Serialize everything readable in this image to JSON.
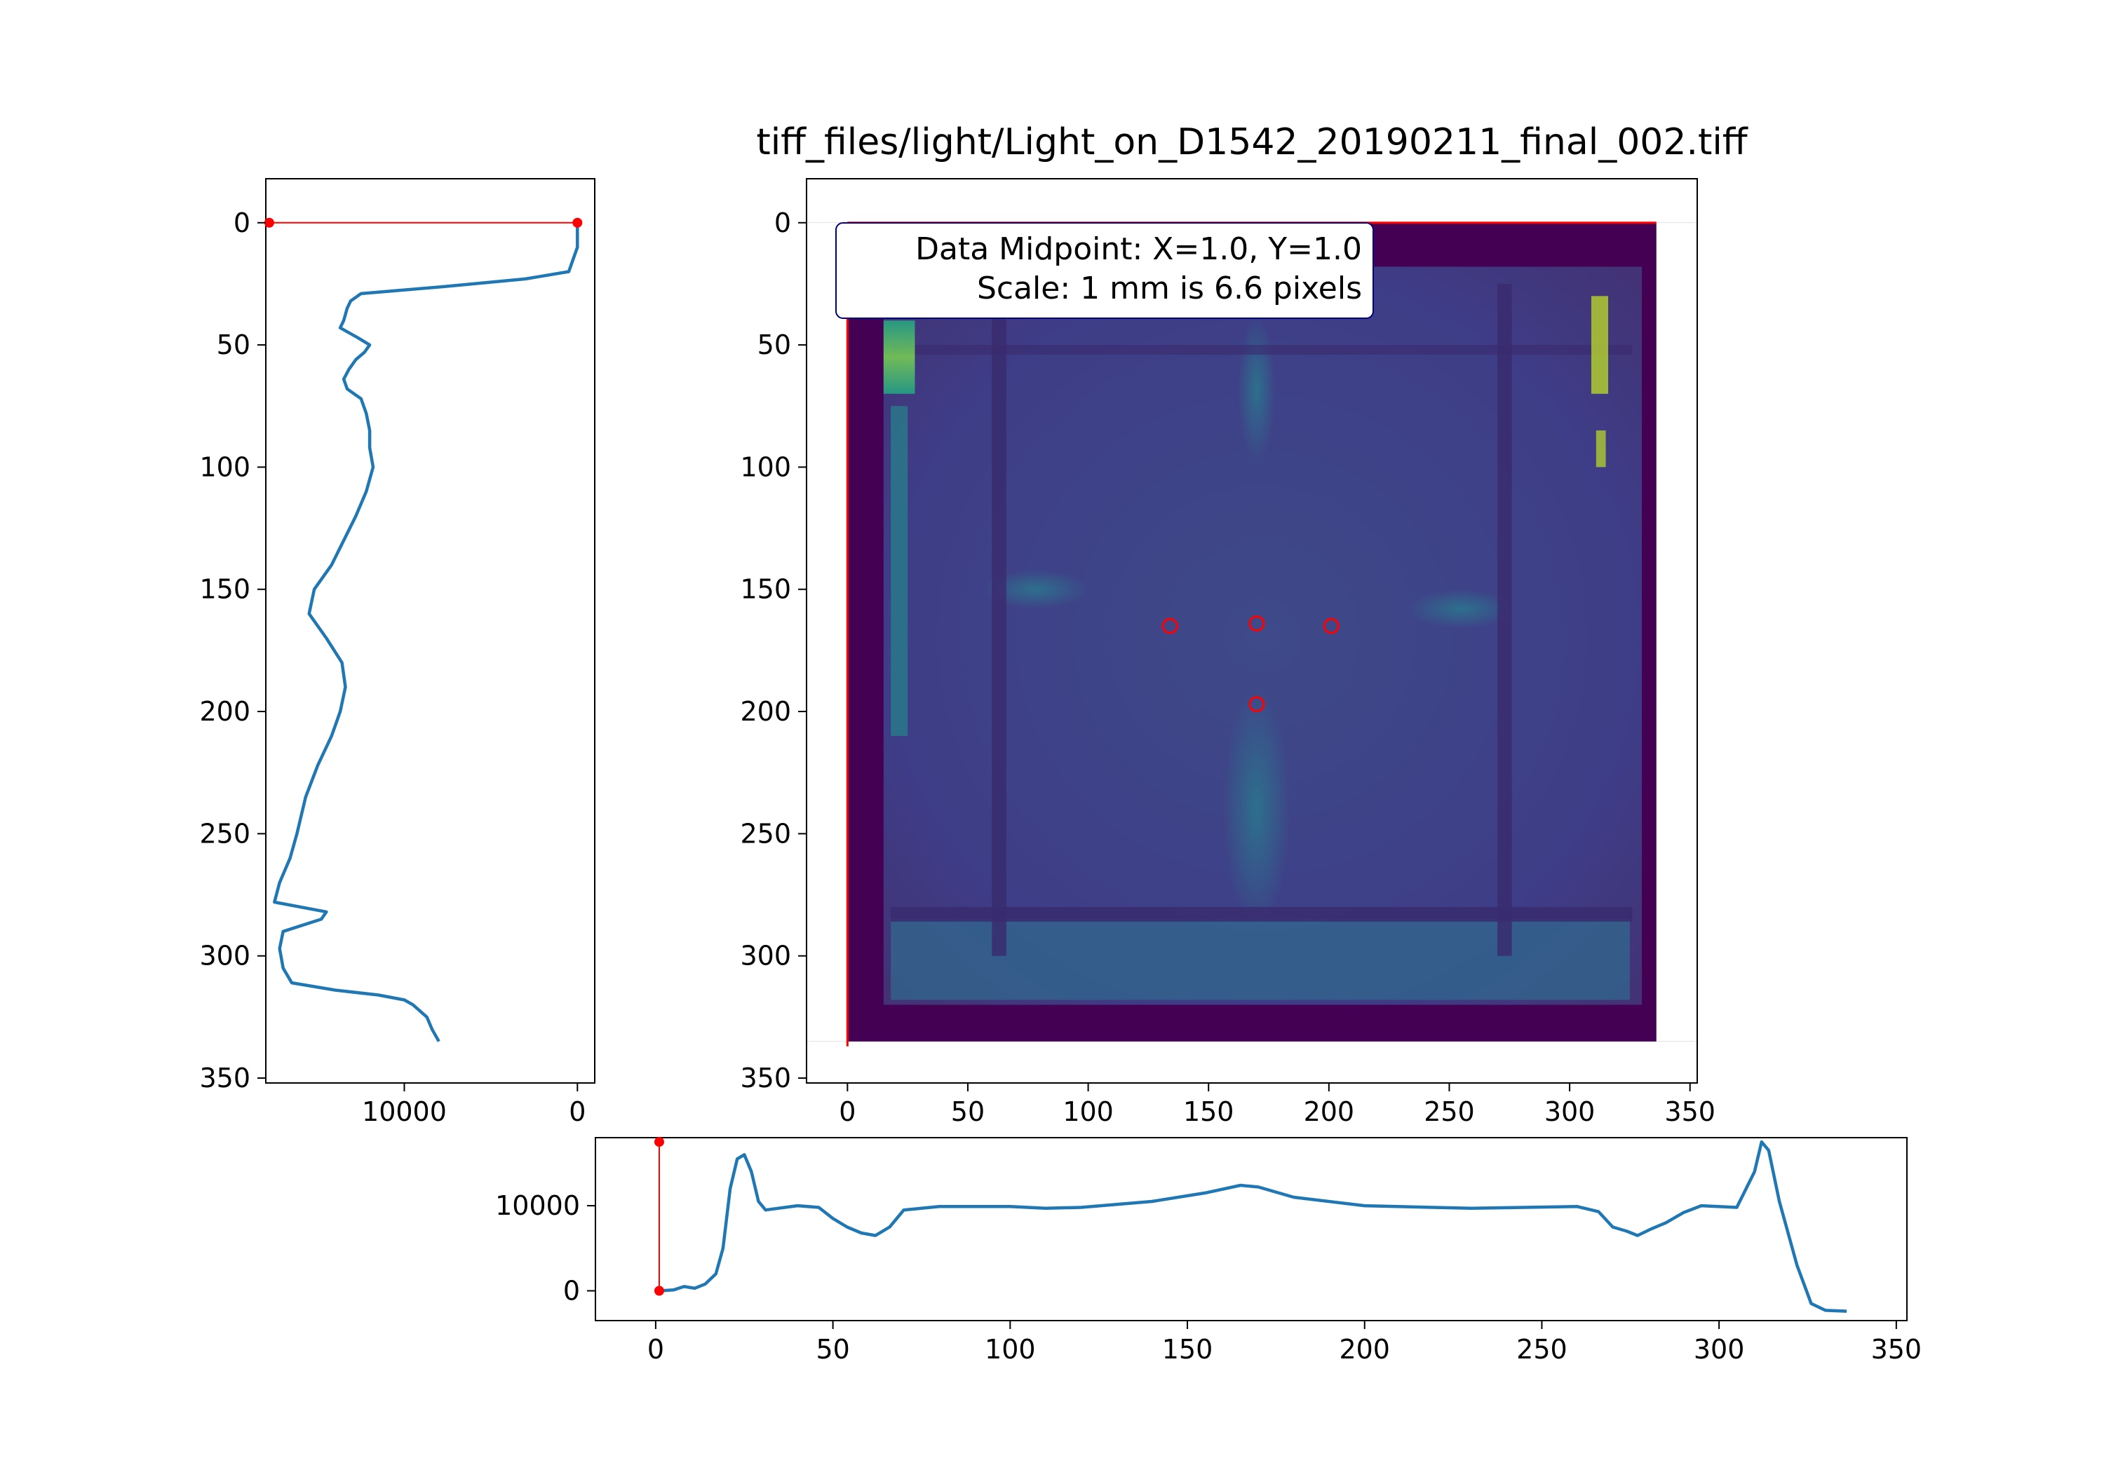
{
  "title": "tiff_files/light/Light_on_D1542_20190211_final_002.tiff",
  "annotation": {
    "line1": "Data Midpoint: X=1.0, Y=1.0",
    "line2": "Scale: 1 mm is 6.6 pixels"
  },
  "colors": {
    "profile": "#1f77b4",
    "marker": "#ff0000",
    "image_border": "#440154",
    "image_base": "#3e3d87",
    "image_highlight": "#c0df25"
  },
  "chart_data": [
    {
      "type": "line",
      "name": "vertical-profile",
      "orientation": "vertical",
      "xlim": [
        18000,
        -1000
      ],
      "ylim": [
        352,
        -18
      ],
      "xticks": [
        "10000",
        "0"
      ],
      "xtick_values": [
        10000,
        0
      ],
      "yticks": [
        "0",
        "50",
        "100",
        "150",
        "200",
        "250",
        "300",
        "350"
      ],
      "ytick_values": [
        0,
        50,
        100,
        150,
        200,
        250,
        300,
        350
      ],
      "series": [
        {
          "points": [
            [
              0,
              0
            ],
            [
              0,
              10
            ],
            [
              500,
              20
            ],
            [
              3000,
              23
            ],
            [
              7500,
              26
            ],
            [
              12500,
              29
            ],
            [
              13100,
              32
            ],
            [
              13300,
              35
            ],
            [
              13500,
              40
            ],
            [
              13700,
              43
            ],
            [
              12700,
              47
            ],
            [
              12000,
              50
            ],
            [
              12300,
              53
            ],
            [
              12800,
              56
            ],
            [
              13200,
              60
            ],
            [
              13500,
              64
            ],
            [
              13300,
              68
            ],
            [
              12500,
              72
            ],
            [
              12200,
              78
            ],
            [
              12000,
              85
            ],
            [
              12000,
              92
            ],
            [
              11800,
              100
            ],
            [
              12200,
              110
            ],
            [
              12800,
              120
            ],
            [
              13500,
              130
            ],
            [
              14200,
              140
            ],
            [
              15200,
              150
            ],
            [
              15500,
              160
            ],
            [
              14500,
              170
            ],
            [
              13600,
              180
            ],
            [
              13400,
              190
            ],
            [
              13700,
              200
            ],
            [
              14200,
              210
            ],
            [
              15000,
              222
            ],
            [
              15700,
              235
            ],
            [
              16200,
              250
            ],
            [
              16600,
              260
            ],
            [
              17200,
              270
            ],
            [
              17500,
              278
            ],
            [
              14500,
              282
            ],
            [
              14800,
              285
            ],
            [
              17000,
              290
            ],
            [
              17200,
              297
            ],
            [
              17000,
              305
            ],
            [
              16500,
              311
            ],
            [
              14000,
              314
            ],
            [
              11500,
              316
            ],
            [
              10000,
              318
            ],
            [
              9500,
              320
            ],
            [
              8700,
              325
            ],
            [
              8400,
              330
            ],
            [
              8000,
              335
            ]
          ]
        }
      ],
      "marker_line": {
        "x": [
          17800,
          0
        ],
        "y": [
          0,
          0
        ]
      }
    },
    {
      "type": "heatmap",
      "name": "tiff-image",
      "xlim": [
        -17,
        353
      ],
      "ylim": [
        352,
        -18
      ],
      "xticks": [
        "0",
        "50",
        "100",
        "150",
        "200",
        "250",
        "300",
        "350"
      ],
      "xtick_values": [
        0,
        50,
        100,
        150,
        200,
        250,
        300,
        350
      ],
      "yticks": [
        "0",
        "50",
        "100",
        "150",
        "200",
        "250",
        "300",
        "350"
      ],
      "ytick_values": [
        0,
        50,
        100,
        150,
        200,
        250,
        300,
        350
      ],
      "image_extent": {
        "x": [
          0,
          336
        ],
        "y": [
          0,
          335
        ]
      },
      "circle_markers": [
        [
          134,
          165
        ],
        [
          170,
          164
        ],
        [
          201,
          165
        ],
        [
          170,
          197
        ]
      ],
      "red_lines": [
        {
          "x": [
            0,
            336
          ],
          "y": [
            0,
            0
          ]
        },
        {
          "x": [
            0,
            0
          ],
          "y": [
            0,
            337
          ]
        }
      ]
    },
    {
      "type": "line",
      "name": "horizontal-profile",
      "orientation": "horizontal",
      "xlim": [
        -17,
        353
      ],
      "ylim": [
        -3500,
        18000
      ],
      "xticks": [
        "0",
        "50",
        "100",
        "150",
        "200",
        "250",
        "300",
        "350"
      ],
      "xtick_values": [
        0,
        50,
        100,
        150,
        200,
        250,
        300,
        350
      ],
      "yticks": [
        "0",
        "10000"
      ],
      "ytick_values": [
        0,
        10000
      ],
      "series": [
        {
          "points": [
            [
              1,
              0
            ],
            [
              5,
              100
            ],
            [
              8,
              500
            ],
            [
              11,
              300
            ],
            [
              14,
              800
            ],
            [
              17,
              2000
            ],
            [
              19,
              5000
            ],
            [
              21,
              12000
            ],
            [
              23,
              15500
            ],
            [
              25,
              16000
            ],
            [
              27,
              14000
            ],
            [
              29,
              10500
            ],
            [
              31,
              9500
            ],
            [
              40,
              10000
            ],
            [
              46,
              9800
            ],
            [
              50,
              8500
            ],
            [
              54,
              7500
            ],
            [
              58,
              6800
            ],
            [
              62,
              6500
            ],
            [
              66,
              7500
            ],
            [
              70,
              9500
            ],
            [
              80,
              9900
            ],
            [
              100,
              9900
            ],
            [
              110,
              9700
            ],
            [
              120,
              9800
            ],
            [
              140,
              10500
            ],
            [
              155,
              11500
            ],
            [
              165,
              12400
            ],
            [
              170,
              12200
            ],
            [
              180,
              11000
            ],
            [
              200,
              10000
            ],
            [
              230,
              9700
            ],
            [
              260,
              9900
            ],
            [
              266,
              9300
            ],
            [
              270,
              7500
            ],
            [
              274,
              7000
            ],
            [
              277,
              6500
            ],
            [
              281,
              7300
            ],
            [
              285,
              8000
            ],
            [
              290,
              9200
            ],
            [
              295,
              10000
            ],
            [
              305,
              9800
            ],
            [
              310,
              14000
            ],
            [
              312,
              17500
            ],
            [
              314,
              16500
            ],
            [
              317,
              10500
            ],
            [
              322,
              3000
            ],
            [
              326,
              -1500
            ],
            [
              330,
              -2300
            ],
            [
              336,
              -2400
            ]
          ]
        }
      ],
      "marker_line": {
        "x": [
          1,
          1
        ],
        "y": [
          0,
          17500
        ]
      }
    }
  ]
}
